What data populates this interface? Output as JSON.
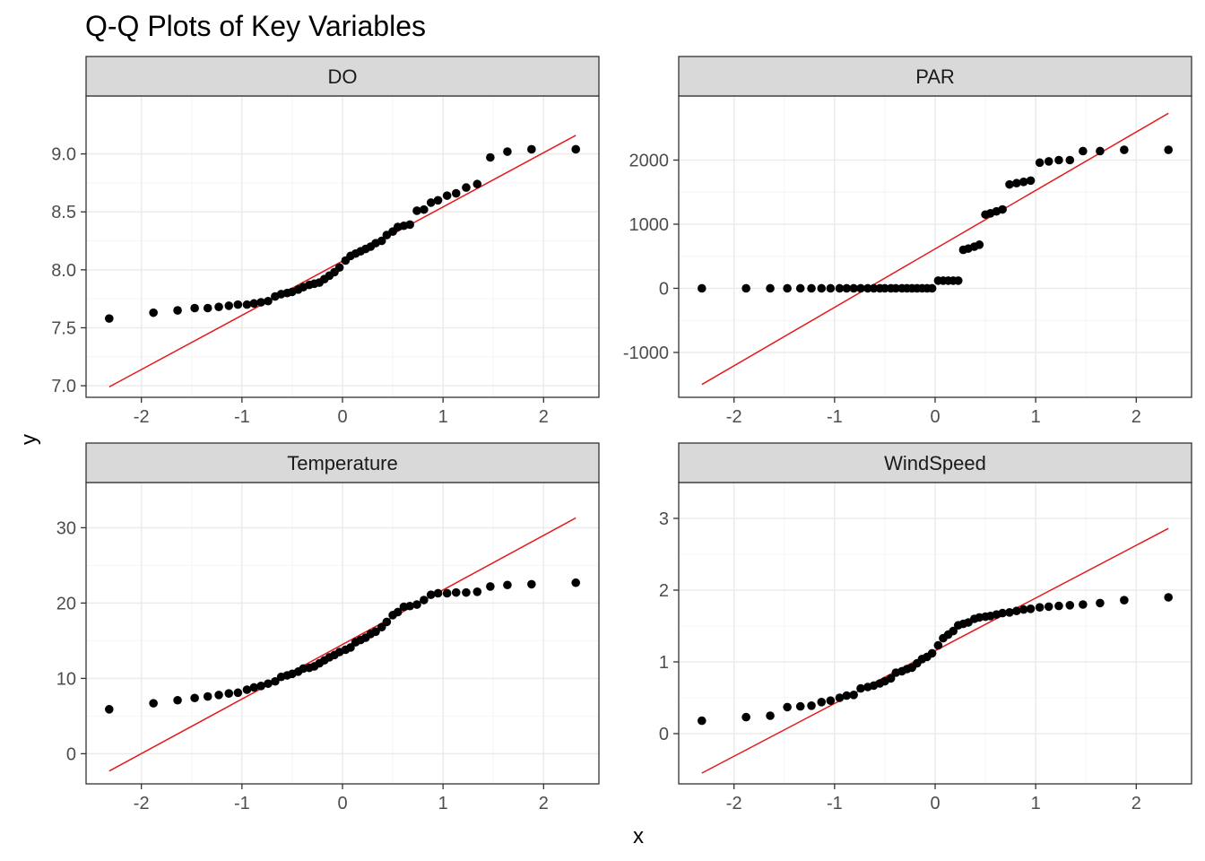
{
  "chart_data": {
    "type": "scatter",
    "title": "Q-Q Plots of Key Variables",
    "xlabel": "x",
    "ylabel": "y",
    "grid": true,
    "colors": {
      "points": "#000000",
      "line": "#e41a1c",
      "strip": "#d9d9d9",
      "border": "#333333",
      "grid_major": "#ebebeb",
      "grid_minor": "#f4f4f4"
    },
    "x": [
      -2.32,
      -1.88,
      -1.64,
      -1.47,
      -1.34,
      -1.23,
      -1.13,
      -1.04,
      -0.95,
      -0.88,
      -0.81,
      -0.74,
      -0.67,
      -0.61,
      -0.55,
      -0.5,
      -0.44,
      -0.39,
      -0.33,
      -0.28,
      -0.23,
      -0.18,
      -0.13,
      -0.08,
      -0.03,
      0.03,
      0.08,
      0.13,
      0.18,
      0.23,
      0.28,
      0.33,
      0.39,
      0.44,
      0.5,
      0.55,
      0.61,
      0.67,
      0.74,
      0.81,
      0.88,
      0.95,
      1.04,
      1.13,
      1.23,
      1.34,
      1.47,
      1.64,
      1.88,
      2.32
    ],
    "panels": [
      {
        "name": "DO",
        "xlim": [
          -2.55,
          2.55
        ],
        "ylim": [
          6.9,
          9.5
        ],
        "xticks": [
          -2,
          -1,
          0,
          1,
          2
        ],
        "xtick_labels": [
          "-2",
          "-1",
          "0",
          "1",
          "2"
        ],
        "yticks": [
          7.0,
          7.5,
          8.0,
          8.5,
          9.0
        ],
        "ytick_labels": [
          "7.0",
          "7.5",
          "8.0",
          "8.5",
          "9.0"
        ],
        "values": [
          7.58,
          7.63,
          7.65,
          7.67,
          7.67,
          7.68,
          7.69,
          7.7,
          7.7,
          7.71,
          7.72,
          7.73,
          7.77,
          7.79,
          7.8,
          7.81,
          7.83,
          7.85,
          7.87,
          7.88,
          7.89,
          7.92,
          7.95,
          7.98,
          8.02,
          8.08,
          8.12,
          8.14,
          8.16,
          8.18,
          8.2,
          8.23,
          8.25,
          8.3,
          8.33,
          8.37,
          8.38,
          8.39,
          8.51,
          8.52,
          8.58,
          8.6,
          8.64,
          8.66,
          8.71,
          8.74,
          8.97,
          9.02,
          9.04,
          9.04
        ],
        "line": [
          [
            -2.32,
            6.99
          ],
          [
            2.32,
            9.16
          ]
        ]
      },
      {
        "name": "PAR",
        "xlim": [
          -2.55,
          2.55
        ],
        "ylim": [
          -1700,
          3000
        ],
        "xticks": [
          -2,
          -1,
          0,
          1,
          2
        ],
        "xtick_labels": [
          "-2",
          "-1",
          "0",
          "1",
          "2"
        ],
        "yticks": [
          -1000,
          0,
          1000,
          2000
        ],
        "ytick_labels": [
          "-1000",
          "0",
          "1000",
          "2000"
        ],
        "values": [
          0,
          0,
          0,
          0,
          0,
          0,
          0,
          0,
          0,
          0,
          0,
          0,
          0,
          0,
          0,
          0,
          0,
          0,
          0,
          0,
          0,
          0,
          0,
          0,
          0,
          120,
          120,
          120,
          120,
          120,
          600,
          620,
          650,
          680,
          1150,
          1170,
          1200,
          1230,
          1620,
          1640,
          1660,
          1680,
          1960,
          1980,
          2000,
          2000,
          2140,
          2140,
          2160,
          2160
        ],
        "line": [
          [
            -2.32,
            -1500
          ],
          [
            2.32,
            2730
          ]
        ]
      },
      {
        "name": "Temperature",
        "xlim": [
          -2.55,
          2.55
        ],
        "ylim": [
          -4,
          36
        ],
        "xticks": [
          -2,
          -1,
          0,
          1,
          2
        ],
        "xtick_labels": [
          "-2",
          "-1",
          "0",
          "1",
          "2"
        ],
        "yticks": [
          0,
          10,
          20,
          30
        ],
        "ytick_labels": [
          "0",
          "10",
          "20",
          "30"
        ],
        "values": [
          5.9,
          6.7,
          7.1,
          7.4,
          7.6,
          7.8,
          8.0,
          8.1,
          8.5,
          8.8,
          9.0,
          9.3,
          9.6,
          10.2,
          10.4,
          10.6,
          10.9,
          11.3,
          11.4,
          11.6,
          12.0,
          12.4,
          12.8,
          13.1,
          13.5,
          13.8,
          14.1,
          14.8,
          15.1,
          15.4,
          15.9,
          16.2,
          16.8,
          17.5,
          18.4,
          18.8,
          19.5,
          19.6,
          19.8,
          20.4,
          21.1,
          21.3,
          21.3,
          21.4,
          21.4,
          21.5,
          22.2,
          22.4,
          22.5,
          22.7
        ],
        "line": [
          [
            -2.32,
            -2.3
          ],
          [
            2.32,
            31.3
          ]
        ]
      },
      {
        "name": "WindSpeed",
        "xlim": [
          -2.55,
          2.55
        ],
        "ylim": [
          -0.7,
          3.5
        ],
        "xticks": [
          -2,
          -1,
          0,
          1,
          2
        ],
        "xtick_labels": [
          "-2",
          "-1",
          "0",
          "1",
          "2"
        ],
        "yticks": [
          0,
          1,
          2,
          3
        ],
        "ytick_labels": [
          "0",
          "1",
          "2",
          "3"
        ],
        "values": [
          0.18,
          0.23,
          0.25,
          0.37,
          0.38,
          0.39,
          0.44,
          0.46,
          0.5,
          0.53,
          0.54,
          0.63,
          0.65,
          0.67,
          0.7,
          0.73,
          0.77,
          0.85,
          0.87,
          0.9,
          0.92,
          0.98,
          1.04,
          1.07,
          1.12,
          1.23,
          1.33,
          1.38,
          1.43,
          1.51,
          1.53,
          1.55,
          1.6,
          1.62,
          1.63,
          1.64,
          1.66,
          1.68,
          1.69,
          1.71,
          1.73,
          1.74,
          1.76,
          1.77,
          1.78,
          1.79,
          1.8,
          1.82,
          1.86,
          1.9
        ],
        "line": [
          [
            -2.32,
            -0.55
          ],
          [
            2.32,
            2.86
          ]
        ]
      }
    ]
  }
}
